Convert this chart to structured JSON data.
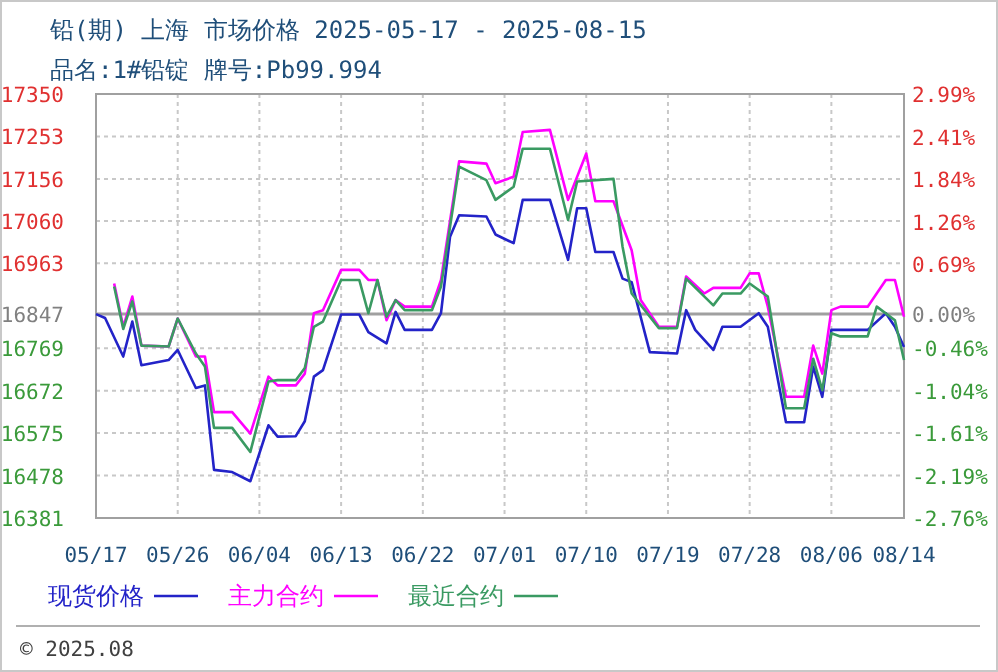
{
  "chart_data": {
    "type": "line",
    "title": "铅(期) 上海 市场价格 2025-05-17 - 2025-08-15",
    "subtitle": "品名:1#铅锭 牌号:Pb99.994",
    "annotations": [
      "© 2025.08"
    ],
    "xlim": [
      "--05-17",
      "--08-14"
    ],
    "xticks": [
      {
        "value": "--05-17",
        "label": "05/17"
      },
      {
        "value": "--05-26",
        "label": "05/26"
      },
      {
        "value": "--06-04",
        "label": "06/04"
      },
      {
        "value": "--06-13",
        "label": "06/13"
      },
      {
        "value": "--06-22",
        "label": "06/22"
      },
      {
        "value": "--07-01",
        "label": "07/01"
      },
      {
        "value": "--07-10",
        "label": "07/10"
      },
      {
        "value": "--07-19",
        "label": "07/19"
      },
      {
        "value": "--07-28",
        "label": "07/28"
      },
      {
        "value": "--08-06",
        "label": "08/06"
      },
      {
        "value": "--08-14",
        "label": "08/14"
      }
    ],
    "ylim": [
      16381,
      17350
    ],
    "yticks": [
      17350,
      17253,
      17156,
      17060,
      16963,
      16847,
      16769,
      16672,
      16575,
      16478,
      16381
    ],
    "y2lim": [
      -2.76,
      2.99
    ],
    "y2ticks": [
      {
        "value": 2.99,
        "label": "2.99%"
      },
      {
        "value": 2.41,
        "label": "2.41%"
      },
      {
        "value": 1.84,
        "label": "1.84%"
      },
      {
        "value": 1.26,
        "label": "1.26%"
      },
      {
        "value": 0.69,
        "label": "0.69%"
      },
      {
        "value": 0,
        "label": "0.00%"
      },
      {
        "value": -0.46,
        "label": "-0.46%"
      },
      {
        "value": -1.04,
        "label": "-1.04%"
      },
      {
        "value": -1.61,
        "label": "-1.61%"
      },
      {
        "value": -2.19,
        "label": "-2.19%"
      },
      {
        "value": -2.76,
        "label": "-2.76%"
      }
    ],
    "ref_lines": [
      {
        "axis": "y",
        "value": 16847,
        "color": "#a0a0a0"
      }
    ],
    "grid": true,
    "legend": "bottom",
    "marker": "none",
    "line_style": "solid",
    "series": [
      {
        "name": "现货价格",
        "color": "#2323c8",
        "x": [
          "--05-17",
          "--05-18",
          "--05-20",
          "--05-21",
          "--05-22",
          "--05-25",
          "--05-26",
          "--05-28",
          "--05-29",
          "--05-30",
          "--06-01",
          "--06-03",
          "--06-05",
          "--06-06",
          "--06-08",
          "--06-09",
          "--06-10",
          "--06-11",
          "--06-13",
          "--06-15",
          "--06-16",
          "--06-18",
          "--06-19",
          "--06-20",
          "--06-23",
          "--06-24",
          "--06-25",
          "--06-26",
          "--06-29",
          "--06-30",
          "--07-02",
          "--07-03",
          "--07-06",
          "--07-08",
          "--07-09",
          "--07-10",
          "--07-11",
          "--07-13",
          "--07-14",
          "--07-15",
          "--07-17",
          "--07-20",
          "--07-21",
          "--07-22",
          "--07-24",
          "--07-25",
          "--07-27",
          "--07-29",
          "--07-30",
          "--08-01",
          "--08-03",
          "--08-04",
          "--08-05",
          "--08-06",
          "--08-10",
          "--08-12",
          "--08-13",
          "--08-14"
        ],
        "values": [
          16847,
          16838,
          16750,
          16830,
          16730,
          16742,
          16765,
          16678,
          16684,
          16491,
          16486,
          16465,
          16593,
          16567,
          16568,
          16602,
          16704,
          16719,
          16846,
          16846,
          16806,
          16780,
          16852,
          16811,
          16811,
          16849,
          17024,
          17073,
          17070,
          17029,
          17009,
          17108,
          17108,
          16971,
          17089,
          17089,
          16989,
          16989,
          16928,
          16920,
          16760,
          16757,
          16856,
          16811,
          16765,
          16818,
          16818,
          16849,
          16818,
          16600,
          16600,
          16727,
          16658,
          16811,
          16811,
          16849,
          16818,
          16772
        ]
      },
      {
        "name": "主力合约",
        "color": "#ff00ff",
        "x": [
          "--05-19",
          "--05-20",
          "--05-21",
          "--05-22",
          "--05-25",
          "--05-26",
          "--05-28",
          "--05-29",
          "--05-30",
          "--06-01",
          "--06-03",
          "--06-05",
          "--06-06",
          "--06-08",
          "--06-09",
          "--06-10",
          "--06-11",
          "--06-13",
          "--06-15",
          "--06-16",
          "--06-17",
          "--06-18",
          "--06-19",
          "--06-20",
          "--06-23",
          "--06-24",
          "--06-26",
          "--06-29",
          "--06-30",
          "--07-02",
          "--07-03",
          "--07-06",
          "--07-08",
          "--07-10",
          "--07-11",
          "--07-13",
          "--07-15",
          "--07-16",
          "--07-18",
          "--07-20",
          "--07-21",
          "--07-23",
          "--07-24",
          "--07-27",
          "--07-28",
          "--07-29",
          "--07-30",
          "--08-01",
          "--08-03",
          "--08-04",
          "--08-05",
          "--08-06",
          "--08-07",
          "--08-10",
          "--08-12",
          "--08-13",
          "--08-14"
        ],
        "values": [
          16917,
          16818,
          16887,
          16775,
          16773,
          16837,
          16750,
          16750,
          16623,
          16623,
          16574,
          16704,
          16684,
          16684,
          16711,
          16849,
          16856,
          16948,
          16948,
          16925,
          16925,
          16833,
          16879,
          16864,
          16864,
          16925,
          17196,
          17191,
          17146,
          17161,
          17263,
          17268,
          17108,
          17214,
          17105,
          17105,
          16993,
          16879,
          16818,
          16818,
          16933,
          16894,
          16907,
          16907,
          16940,
          16940,
          16864,
          16658,
          16658,
          16775,
          16711,
          16856,
          16864,
          16864,
          16925,
          16925,
          16841
        ]
      },
      {
        "name": "最近合约",
        "color": "#3a9a62",
        "x": [
          "--05-19",
          "--05-20",
          "--05-21",
          "--05-22",
          "--05-25",
          "--05-26",
          "--05-28",
          "--05-29",
          "--05-30",
          "--06-01",
          "--06-03",
          "--06-05",
          "--06-06",
          "--06-08",
          "--06-09",
          "--06-10",
          "--06-11",
          "--06-13",
          "--06-15",
          "--06-16",
          "--06-17",
          "--06-18",
          "--06-19",
          "--06-20",
          "--06-23",
          "--06-24",
          "--06-26",
          "--06-29",
          "--06-30",
          "--07-02",
          "--07-03",
          "--07-06",
          "--07-08",
          "--07-09",
          "--07-13",
          "--07-14",
          "--07-15",
          "--07-18",
          "--07-20",
          "--07-21",
          "--07-24",
          "--07-25",
          "--07-27",
          "--07-28",
          "--07-30",
          "--08-01",
          "--08-03",
          "--08-04",
          "--08-05",
          "--08-06",
          "--08-07",
          "--08-10",
          "--08-11",
          "--08-13",
          "--08-14"
        ],
        "values": [
          16910,
          16813,
          16876,
          16775,
          16773,
          16837,
          16757,
          16727,
          16587,
          16587,
          16532,
          16693,
          16696,
          16696,
          16724,
          16818,
          16830,
          16925,
          16925,
          16849,
          16925,
          16841,
          16879,
          16856,
          16856,
          16910,
          17184,
          17153,
          17108,
          17138,
          17225,
          17225,
          17062,
          17150,
          17156,
          17001,
          16894,
          16815,
          16815,
          16928,
          16867,
          16894,
          16894,
          16917,
          16887,
          16632,
          16632,
          16745,
          16673,
          16803,
          16796,
          16796,
          16864,
          16833,
          16742
        ]
      }
    ]
  }
}
